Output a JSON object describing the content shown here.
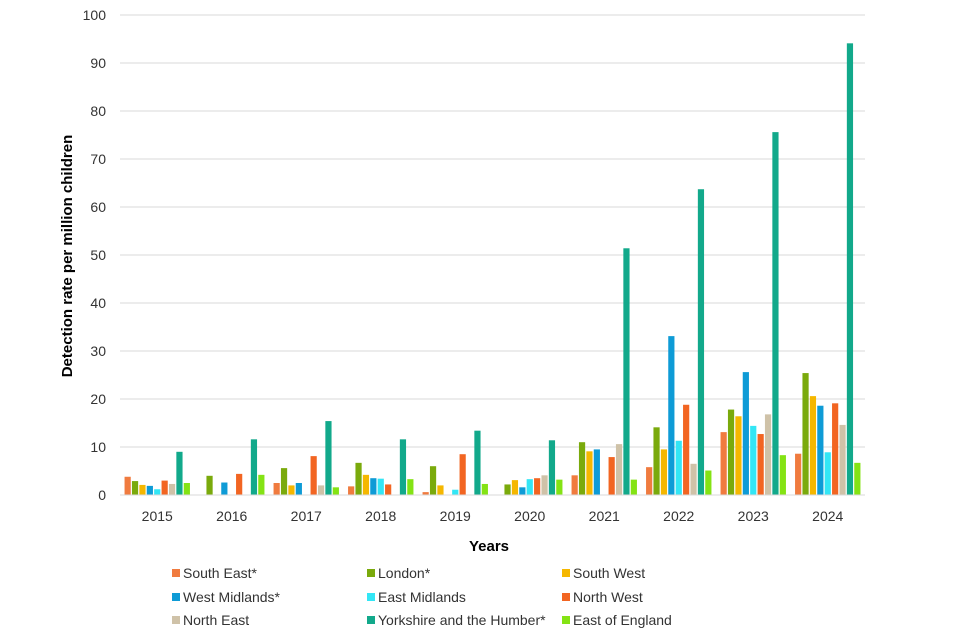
{
  "chart_data": {
    "type": "bar",
    "title": "",
    "xlabel": "Years",
    "ylabel": "Detection rate per million children",
    "ylim": [
      0,
      100
    ],
    "yticks": [
      "0",
      "10",
      "20",
      "30",
      "40",
      "50",
      "60",
      "70",
      "80",
      "90",
      "100"
    ],
    "grid": true,
    "legend_position": "bottom",
    "categories": [
      "2015",
      "2016",
      "2017",
      "2018",
      "2019",
      "2020",
      "2021",
      "2022",
      "2023",
      "2024"
    ],
    "series": [
      {
        "name": "South East*",
        "color": "#F07B3F",
        "values": [
          3.8,
          0,
          2.5,
          1.8,
          0.6,
          0,
          4.1,
          5.8,
          13.1,
          8.6
        ]
      },
      {
        "name": "London*",
        "color": "#7AAA0C",
        "values": [
          2.9,
          4.0,
          5.6,
          6.7,
          6.0,
          2.2,
          11.0,
          14.1,
          17.8,
          25.4
        ]
      },
      {
        "name": "South West",
        "color": "#F5B700",
        "values": [
          2.1,
          0,
          2.0,
          4.2,
          2.0,
          3.1,
          9.1,
          9.5,
          16.4,
          20.6
        ]
      },
      {
        "name": "West Midlands*",
        "color": "#0E9BD6",
        "values": [
          1.9,
          2.6,
          2.5,
          3.5,
          0,
          1.6,
          9.5,
          33.1,
          25.6,
          18.6
        ]
      },
      {
        "name": "East Midlands",
        "color": "#33E6F5",
        "values": [
          1.2,
          0,
          0,
          3.4,
          1.1,
          3.3,
          0,
          11.3,
          14.4,
          8.9
        ]
      },
      {
        "name": "North West",
        "color": "#F26522",
        "values": [
          3.0,
          4.4,
          8.1,
          2.2,
          8.5,
          3.5,
          7.9,
          18.8,
          12.7,
          19.1
        ]
      },
      {
        "name": "North East",
        "color": "#CFC2A8",
        "values": [
          2.3,
          0,
          2.0,
          0,
          0,
          4.1,
          10.6,
          6.5,
          16.8,
          14.6
        ]
      },
      {
        "name": "Yorkshire and the Humber*",
        "color": "#12A98B",
        "values": [
          9.0,
          11.6,
          15.4,
          11.6,
          13.4,
          11.4,
          51.4,
          63.7,
          75.6,
          94.1
        ]
      },
      {
        "name": "East of England",
        "color": "#84E314",
        "values": [
          2.5,
          4.2,
          1.6,
          3.3,
          2.3,
          3.2,
          3.2,
          5.1,
          8.3,
          6.7
        ]
      }
    ]
  }
}
